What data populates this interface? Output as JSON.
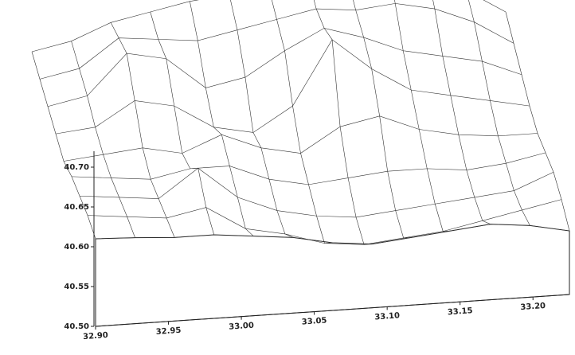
{
  "chart_data": {
    "type": "surface",
    "xlim": [
      32.9,
      33.225
    ],
    "xticks": [
      {
        "value": 32.9,
        "label": "32.90"
      },
      32.95,
      {
        "value": 33.0,
        "label": "33.00"
      },
      33.05,
      {
        "value": 33.1,
        "label": "33.10"
      },
      33.15,
      {
        "value": 33.2,
        "label": "33.20"
      }
    ],
    "ylim": [
      40.5,
      40.72
    ],
    "yticks": [
      {
        "value": 40.5,
        "label": "40.50"
      },
      40.55,
      {
        "value": 40.6,
        "label": "40.60"
      },
      40.65,
      {
        "value": 40.7,
        "label": "40.70"
      }
    ],
    "z": [
      [
        110,
        120,
        140,
        150,
        160,
        165,
        170,
        180,
        175,
        195,
        180,
        150,
        120
      ],
      [
        105,
        115,
        150,
        145,
        140,
        150,
        160,
        170,
        165,
        170,
        160,
        140,
        110
      ],
      [
        100,
        110,
        160,
        150,
        110,
        120,
        150,
        175,
        160,
        140,
        130,
        120,
        100
      ],
      [
        95,
        100,
        130,
        120,
        90,
        80,
        110,
        190,
        150,
        120,
        110,
        100,
        90
      ],
      [
        90,
        95,
        100,
        90,
        110,
        90,
        80,
        110,
        120,
        100,
        90,
        85,
        85
      ],
      [
        100,
        95,
        90,
        100,
        100,
        80,
        70,
        75,
        80,
        80,
        75,
        80,
        90
      ],
      [
        105,
        100,
        95,
        130,
        90,
        70,
        60,
        55,
        60,
        65,
        70,
        75,
        95
      ],
      [
        110,
        105,
        100,
        110,
        80,
        70,
        55,
        50,
        55,
        60,
        70,
        80,
        90
      ],
      [
        110,
        108,
        105,
        105,
        100,
        95,
        85,
        80,
        85,
        90,
        95,
        90,
        80
      ]
    ],
    "color": "#333333"
  }
}
